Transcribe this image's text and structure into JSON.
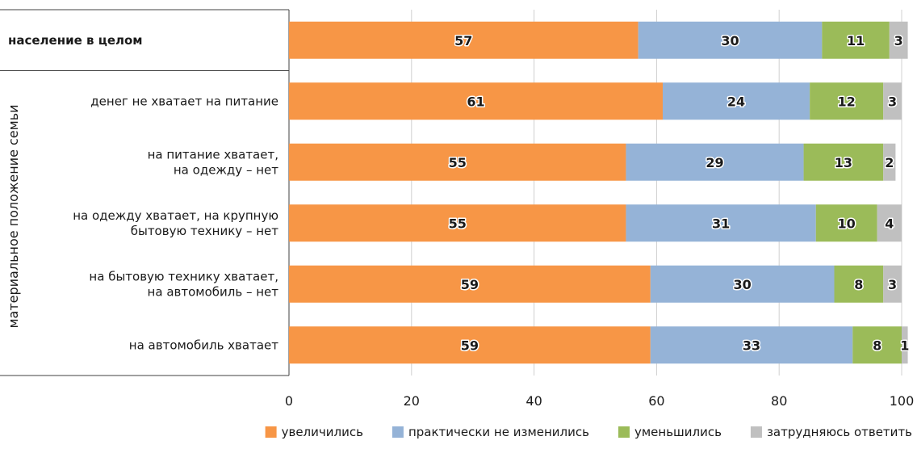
{
  "chart_data": {
    "type": "bar",
    "orientation": "horizontal",
    "stacked": true,
    "group_label": "материальное положение семьи",
    "categories": [
      "население в целом",
      "денег не хватает на питание",
      "на питание хватает, на одежду – нет",
      "на одежду хватает, на крупную бытовую технику – нет",
      "на бытовую технику хватает, на автомобиль – нет",
      "на автомобиль хватает"
    ],
    "category_lines": [
      [
        "население в целом"
      ],
      [
        "денег не хватает на питание"
      ],
      [
        "на питание хватает,",
        "на одежду – нет"
      ],
      [
        "на одежду хватает, на крупную",
        "бытовую технику – нет"
      ],
      [
        "на бытовую технику хватает,",
        "на автомобиль – нет"
      ],
      [
        "на автомобиль хватает"
      ]
    ],
    "series": [
      {
        "name": "увеличились",
        "color": "#f79646",
        "values": [
          57,
          61,
          55,
          55,
          59,
          59
        ]
      },
      {
        "name": "практически не изменились",
        "color": "#95b3d7",
        "values": [
          30,
          24,
          29,
          31,
          30,
          33
        ]
      },
      {
        "name": "уменьшились",
        "color": "#9bbb59",
        "values": [
          11,
          12,
          13,
          10,
          8,
          8
        ]
      },
      {
        "name": "затрудняюсь ответить",
        "color": "#c0c0c0",
        "values": [
          3,
          3,
          2,
          4,
          3,
          1
        ]
      }
    ],
    "xlim": [
      0,
      100
    ],
    "xticks": [
      0,
      20,
      40,
      60,
      80,
      100
    ],
    "grid": true,
    "legend_position": "bottom-right"
  }
}
